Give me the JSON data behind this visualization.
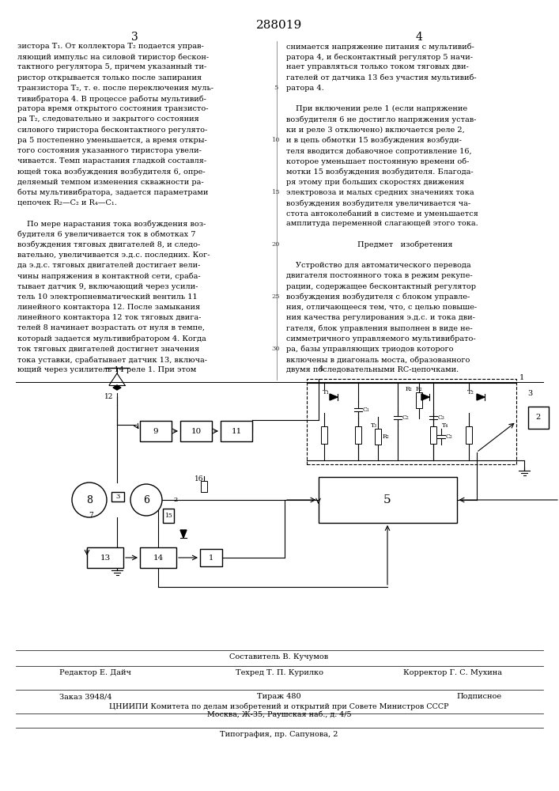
{
  "patent_number": "288019",
  "page_numbers": [
    "3",
    "4"
  ],
  "col1_text": [
    "зистора T₁. От коллектора T₂ подается управ-",
    "ляющий импульс на силовой тиристор бескон-",
    "тактного регулятора 5, причем указанный ти-",
    "ристор открывается только после запирания",
    "транзистора T₂, т. е. после переключения муль-",
    "тивибратора 4. В процессе работы мультивиб-",
    "ратора время открытого состояния транзисто-",
    "ра T₂, следовательно и закрытого состояния",
    "силового тиристора бесконтактного регулято-",
    "ра 5 постепенно уменьшается, а время откры-",
    "того состояния указанного тиристора увели-",
    "чивается. Темп нарастания гладкой составля-",
    "ющей тока возбуждения возбудителя 6, опре-",
    "деляемый темпом изменения скважности ра-",
    "боты мультивибратора, задается параметрами",
    "цепочек R₂—C₂ и R₄—C₁.",
    "",
    "По мере нарастания тока возбуждения воз-",
    "будителя 6 увеличивается ток в обмотках 7",
    "возбуждения тяговых двигателей 8, и следо-",
    "вательно, увеличивается э.д.с. последних. Ког-",
    "да э.д.с. тяговых двигателей достигает вели-",
    "чины напряжения в контактной сети, сраба-",
    "тывает датчик 9, включающий через усили-",
    "тель 10 электропневматический вентиль 11",
    "линейного контактора 12. После замыкания",
    "линейного контактора 12 ток тяговых двига-",
    "телей 8 начинает возрастать от нуля в темпе,",
    "который задается мультивибратором 4. Когда",
    "ток тяговых двигателей достигнет значения",
    "тока уставки, срабатывает датчик 13, включа-",
    "ющий через усилитель 14 реле 1. При этом"
  ],
  "col2_text": [
    "снимается напряжение питания с мультивиб-",
    "ратора 4, и бесконтактный регулятор 5 начи-",
    "нает управляться только током тяговых дви-",
    "гателей от датчика 13 без участия мультивиб-",
    "ратора 4.",
    "",
    "При включении реле 1 (если напряжение",
    "возбудителя 6 не достигло напряжения устав-",
    "ки и реле 3 отключено) включается реле 2,",
    "и в цепь обмотки 15 возбуждения возбуди-",
    "теля вводится добавочное сопротивление 16,",
    "которое уменьшает постоянную времени об-",
    "мотки 15 возбуждения возбудителя. Благода-",
    "ря этому при больших скоростях движения",
    "электровоза и малых средних значениях тока",
    "возбуждения возбудителя увеличивается ча-",
    "стота автоколебаний в системе и уменьшается",
    "амплитуда переменной слагающей этого тока.",
    "",
    "Предмет   изобретения",
    "",
    "Устройство для автоматического перевода",
    "двигателя постоянного тока в режим рекупе-",
    "рации, содержащее бесконтактный регулятор",
    "возбуждения возбудителя с блоком управле-",
    "ния, отличающееся тем, что, с целью повыше-",
    "ния качества регулирования э.д.с. и тока дви-",
    "гателя, блок управления выполнен в виде не-",
    "симметричного управляемого мультивибрато-",
    "ра, базы управляющих триодов которого",
    "включены в диагональ моста, образованного",
    "двумя последовательными RC-цепочками."
  ],
  "footer_composer": "Составитель В. Кучумов",
  "footer_editor": "Редактор Е. Дайч",
  "footer_techred": "Техред Т. П. Курилко",
  "footer_corrector": "Корректор Г. С. Мухина",
  "footer_order": "Заказ 3948/4",
  "footer_circulation": "Тираж 480",
  "footer_signed": "Подписное",
  "footer_cniiipi": "ЦНИИПИ Комитета по делам изобретений и открытий при Совете Министров СССР",
  "footer_address": "Москва, Ж-35, Раушская наб., д. 4/5",
  "footer_typography": "Типография, пр. Сапунова, 2"
}
